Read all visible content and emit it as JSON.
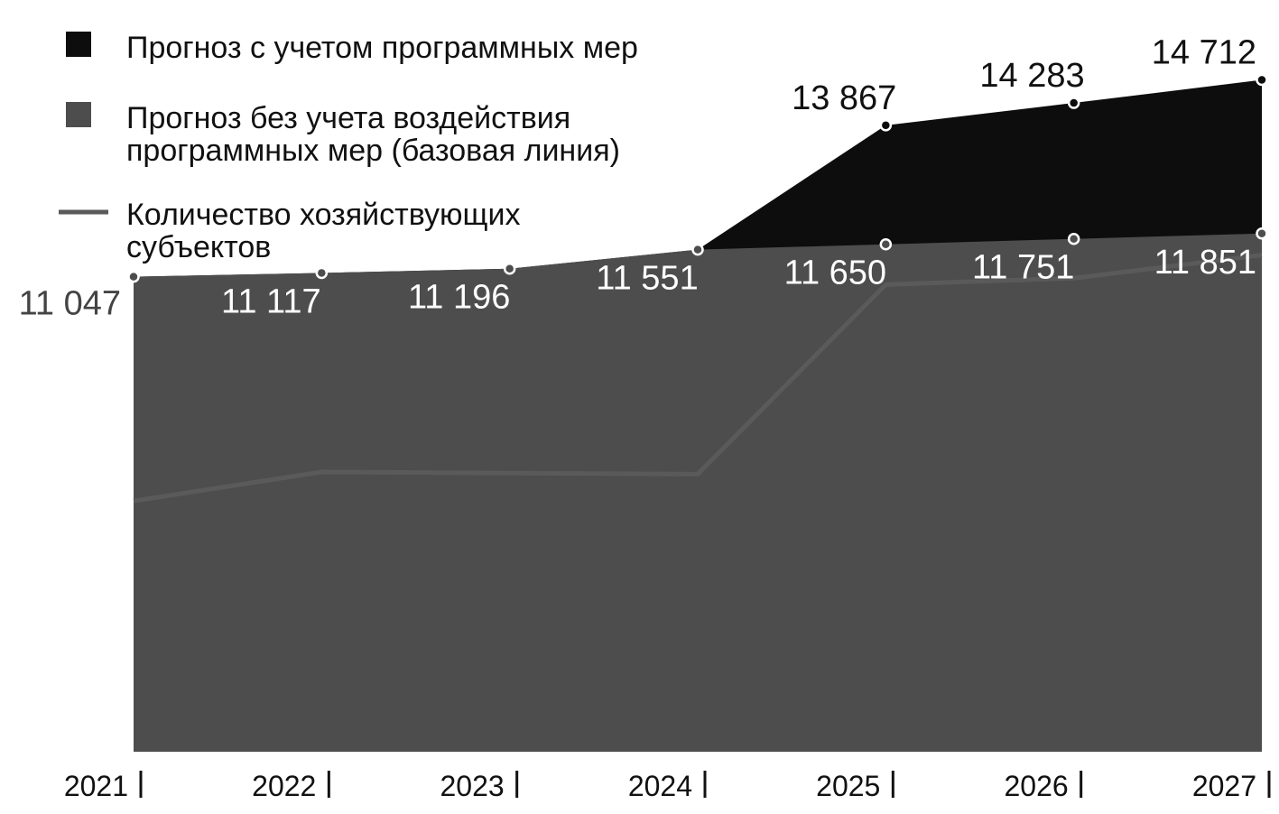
{
  "chart_data": {
    "type": "area",
    "title": "",
    "xlabel": "",
    "ylabel": "",
    "categories": [
      "2021",
      "2022",
      "2023",
      "2024",
      "2025",
      "2026",
      "2027"
    ],
    "series": [
      {
        "name": "Прогноз с учетом программных мер",
        "kind": "area",
        "color": "#0d0d0d",
        "values": [
          11047,
          11117,
          11196,
          11551,
          13867,
          14283,
          14712
        ],
        "labels": [
          "",
          "",
          "",
          "",
          "13 867",
          "14 283",
          "14 712"
        ]
      },
      {
        "name": "Прогноз без учета воздействия программных мер (базовая линия)",
        "kind": "area",
        "color": "#4d4d4d",
        "values": [
          11047,
          11117,
          11196,
          11551,
          11650,
          11751,
          11851
        ],
        "labels": [
          "11 047",
          "11 117",
          "11 196",
          "11 551",
          "11 650",
          "11 751",
          "11 851"
        ]
      },
      {
        "name": "Количество хозяйствующих субъектов",
        "kind": "line",
        "color": "#5a5a5a",
        "values": [
          6870,
          7410,
          7390,
          7370,
          10900,
          11020,
          11450
        ],
        "labels": []
      }
    ],
    "legend": {
      "position": "top-left",
      "entries": [
        {
          "lines": [
            "Прогноз с учетом программных мер"
          ],
          "marker": "square",
          "color": "#0d0d0d"
        },
        {
          "lines": [
            "Прогноз без учета воздействия",
            "программных мер (базовая линия)"
          ],
          "marker": "square",
          "color": "#4d4d4d"
        },
        {
          "lines": [
            "Количество хозяйствующих",
            "субъектов"
          ],
          "marker": "line",
          "color": "#5a5a5a"
        }
      ]
    },
    "ylim": [
      2200,
      16200
    ],
    "grid": false
  }
}
